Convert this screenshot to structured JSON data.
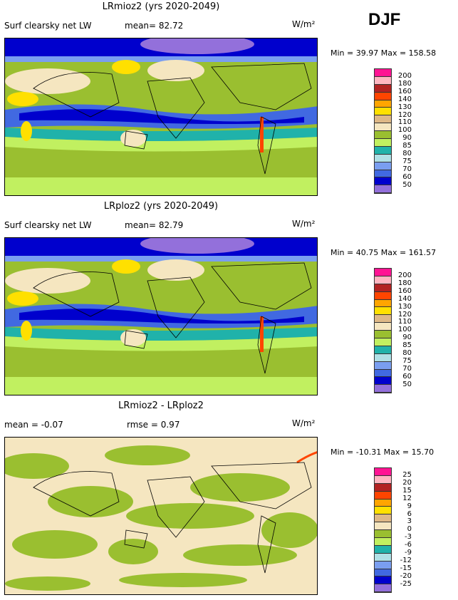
{
  "season": "DJF",
  "panels": [
    {
      "title": "LRmioz2 (yrs 2020-2049)",
      "variable": "Surf clearsky net LW",
      "stat1": "mean=  82.72",
      "stat2": "",
      "units": "W/m²",
      "minmax": "Min =   39.97  Max =  158.58",
      "levels": [
        "200",
        "180",
        "160",
        "140",
        "130",
        "120",
        "110",
        "100",
        "90",
        "85",
        "80",
        "75",
        "70",
        "60",
        "50"
      ]
    },
    {
      "title": "LRploz2 (yrs 2020-2049)",
      "variable": "Surf clearsky net LW",
      "stat1": "mean=  82.79",
      "stat2": "",
      "units": "W/m²",
      "minmax": "Min =   40.75  Max =  161.57",
      "levels": [
        "200",
        "180",
        "160",
        "140",
        "130",
        "120",
        "110",
        "100",
        "90",
        "85",
        "80",
        "75",
        "70",
        "60",
        "50"
      ]
    },
    {
      "title": "LRmioz2 - LRploz2",
      "variable": "mean =  -0.07",
      "stat1": "rmse =   0.97",
      "stat2": "",
      "units": "W/m²",
      "minmax": "Min = -10.31  Max =   15.70",
      "levels": [
        "25",
        "20",
        "15",
        "12",
        "9",
        "6",
        "3",
        "0",
        "-3",
        "-6",
        "-9",
        "-12",
        "-15",
        "-20",
        "-25"
      ]
    }
  ],
  "colors": [
    "#ff1493",
    "#ffb6c1",
    "#b22222",
    "#ff4500",
    "#ffa500",
    "#ffe000",
    "#deb887",
    "#f5e6c0",
    "#9abf30",
    "#c1f060",
    "#20b2aa",
    "#b0e0e6",
    "#7a9ef0",
    "#4169e1",
    "#0000cd",
    "#9370db"
  ]
}
